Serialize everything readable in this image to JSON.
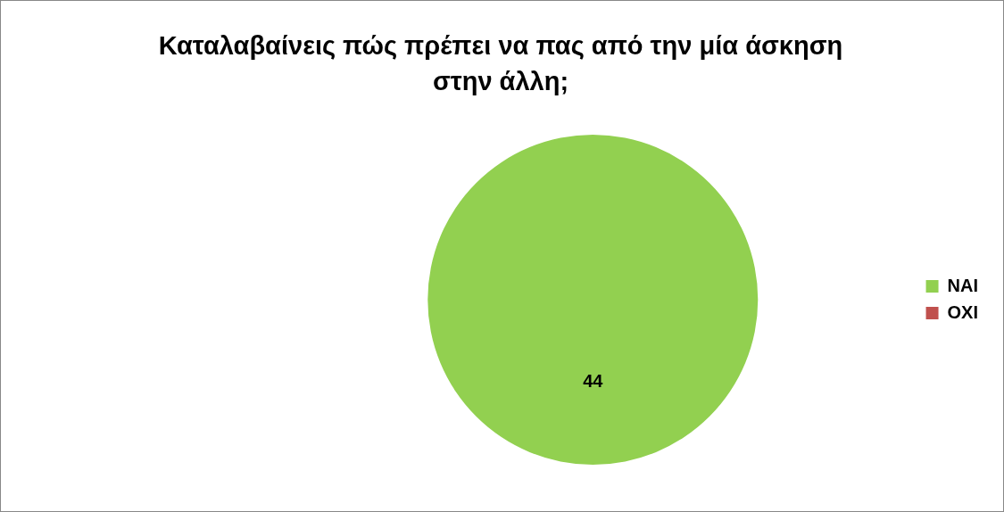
{
  "chart_data": {
    "type": "pie",
    "title": "Καταλαβαίνεις πώς πρέπει να πας από την μία άσκηση στην άλλη;",
    "categories": [
      "ΝΑΙ",
      "ΟΧΙ"
    ],
    "values": [
      44,
      0
    ],
    "colors": [
      "#92d050",
      "#c0504d"
    ],
    "data_labels": true,
    "legend": "right"
  }
}
